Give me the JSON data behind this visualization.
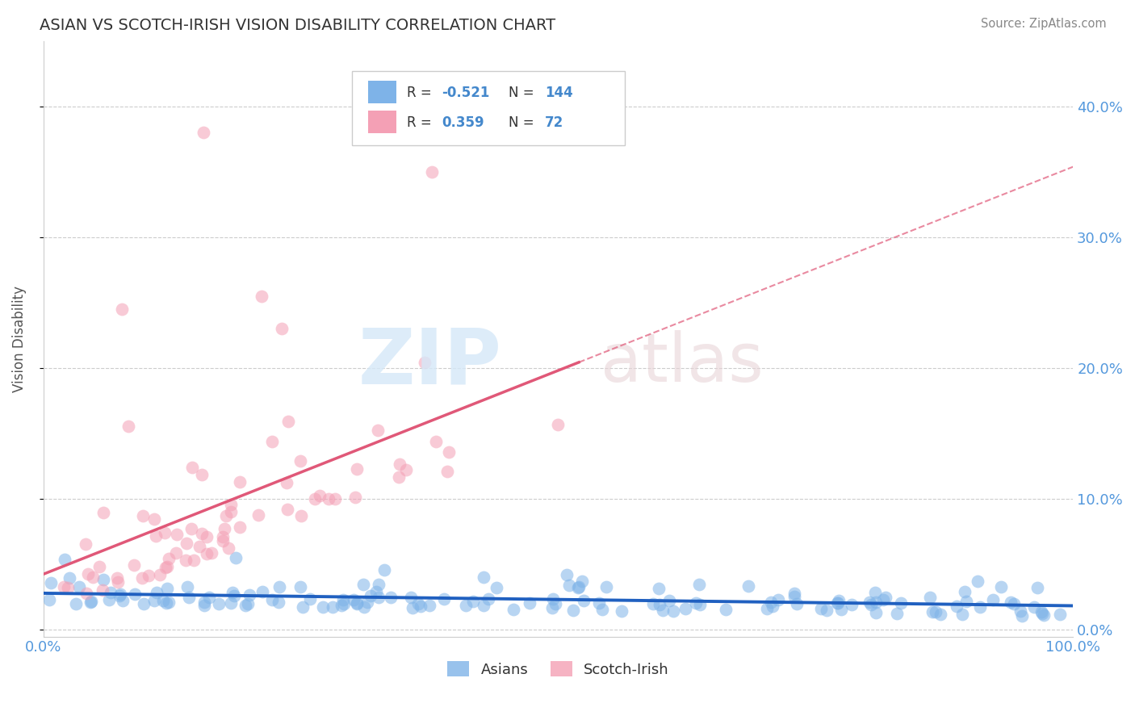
{
  "title": "ASIAN VS SCOTCH-IRISH VISION DISABILITY CORRELATION CHART",
  "source": "Source: ZipAtlas.com",
  "ylabel": "Vision Disability",
  "xlim": [
    0,
    1.0
  ],
  "ylim": [
    -0.005,
    0.45
  ],
  "yticks": [
    0.0,
    0.1,
    0.2,
    0.3,
    0.4
  ],
  "ytick_labels": [
    "0.0%",
    "10.0%",
    "20.0%",
    "30.0%",
    "40.0%"
  ],
  "xtick_vals": [
    0.0,
    0.25,
    0.5,
    0.75,
    1.0
  ],
  "xtick_labels": [
    "0.0%",
    "",
    "",
    "",
    "100.0%"
  ],
  "asian_color": "#7EB3E8",
  "scotch_color": "#F4A0B5",
  "asian_line_color": "#2060C0",
  "scotch_line_color": "#E05878",
  "background": "#FFFFFF",
  "legend_r_asian": "-0.521",
  "legend_n_asian": "144",
  "legend_r_scotch": "0.359",
  "legend_n_scotch": "72",
  "tick_color": "#5599DD",
  "title_color": "#333333",
  "source_color": "#888888",
  "ylabel_color": "#555555"
}
